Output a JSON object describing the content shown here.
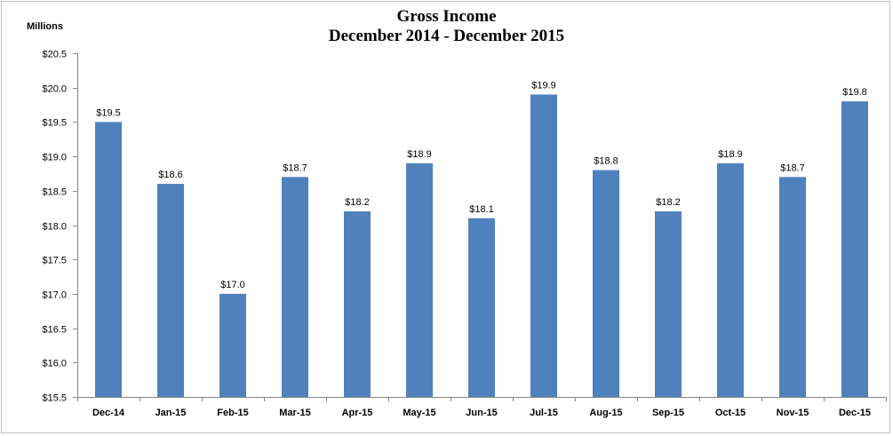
{
  "chart_data": {
    "type": "bar",
    "title": "Gross Income",
    "subtitle": "December 2014 - December 2015",
    "ylabel": "Millions",
    "xlabel": "",
    "ylim": [
      15.5,
      20.5
    ],
    "yticks": [
      15.5,
      16.0,
      16.5,
      17.0,
      17.5,
      18.0,
      18.5,
      19.0,
      19.5,
      20.0,
      20.5
    ],
    "ytick_labels": [
      "$15.5",
      "$16.0",
      "$16.5",
      "$17.0",
      "$17.5",
      "$18.0",
      "$18.5",
      "$19.0",
      "$19.5",
      "$20.0",
      "$20.5"
    ],
    "categories": [
      "Dec-14",
      "Jan-15",
      "Feb-15",
      "Mar-15",
      "Apr-15",
      "May-15",
      "Jun-15",
      "Jul-15",
      "Aug-15",
      "Sep-15",
      "Oct-15",
      "Nov-15",
      "Dec-15"
    ],
    "values": [
      19.5,
      18.6,
      17.0,
      18.7,
      18.2,
      18.9,
      18.1,
      19.9,
      18.8,
      18.2,
      18.9,
      18.7,
      19.8
    ],
    "data_labels": [
      "$19.5",
      "$18.6",
      "$17.0",
      "$18.7",
      "$18.2",
      "$18.9",
      "$18.1",
      "$19.9",
      "$18.8",
      "$18.2",
      "$18.9",
      "$18.7",
      "$19.8"
    ],
    "grid": false,
    "legend": "none",
    "bar_color": "#4F81BD"
  }
}
